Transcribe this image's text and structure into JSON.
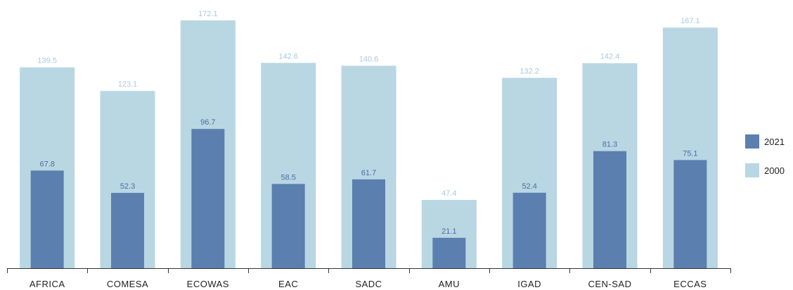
{
  "chart_data": {
    "type": "bar",
    "categories": [
      "AFRICA",
      "COMESA",
      "ECOWAS",
      "EAC",
      "SADC",
      "AMU",
      "IGAD",
      "CEN-SAD",
      "ECCAS"
    ],
    "series": [
      {
        "name": "2021",
        "values": [
          67.8,
          52.3,
          96.7,
          58.5,
          61.7,
          21.1,
          52.4,
          81.3,
          75.1
        ],
        "color": "#5b7faf",
        "label_color": "#4a6fa3"
      },
      {
        "name": "2000",
        "values": [
          139.5,
          123.1,
          172.1,
          142.6,
          140.6,
          47.4,
          132.2,
          142.4,
          167.1
        ],
        "color": "#b9d6e3",
        "label_color": "#a9cadb"
      }
    ],
    "value_labels": {
      "2021": [
        "67.8",
        "52.3",
        "96.7",
        "58.5",
        "61.7",
        "21.1",
        "52.4",
        "81.3",
        "75.1"
      ],
      "2000": [
        "139.5",
        "123.1",
        "172.1",
        "142.6",
        "140.6",
        "47.4",
        "132.2",
        "142.4",
        "167.1"
      ]
    },
    "ylim": [
      0,
      180
    ],
    "grid": false,
    "legend_position": "right",
    "title": "",
    "xlabel": "",
    "ylabel": ""
  }
}
